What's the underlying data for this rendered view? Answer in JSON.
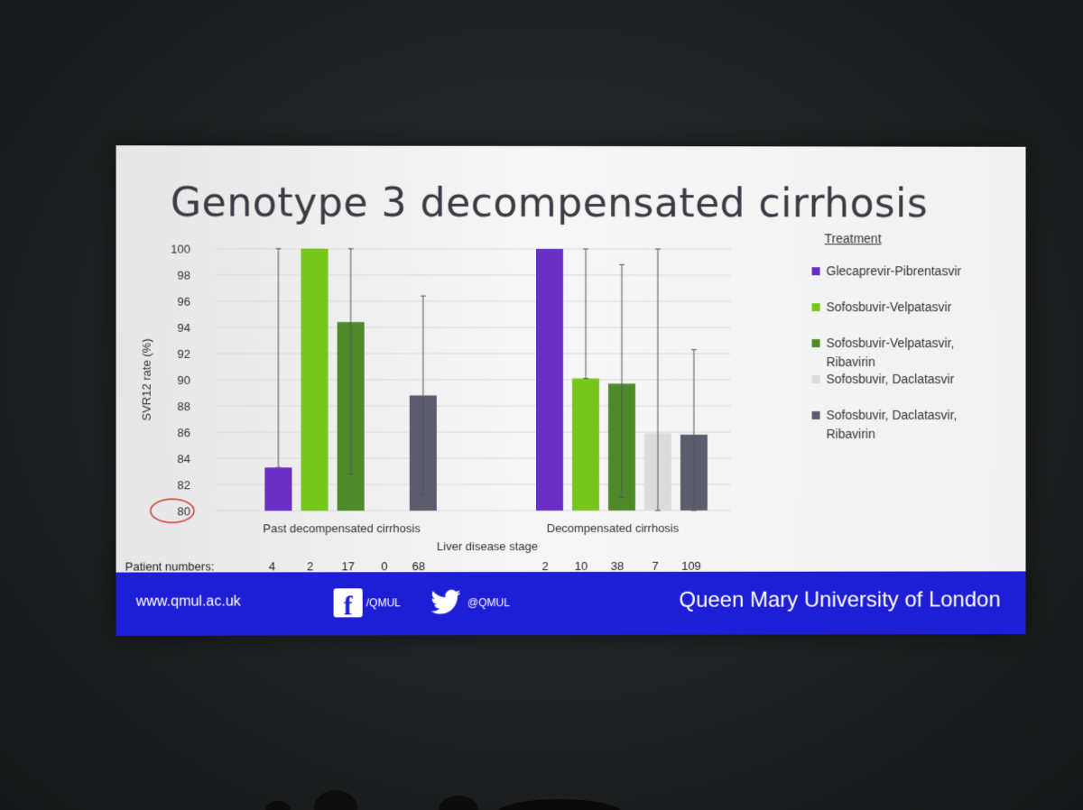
{
  "title": "Genotype 3 decompensated cirrhosis",
  "legend_title": "Treatment",
  "chart_data": {
    "type": "bar",
    "ylabel": "SVR12 rate (%)",
    "xlabel": "Liver disease stage",
    "ylim": [
      80,
      100
    ],
    "yticks": [
      80,
      82,
      84,
      86,
      88,
      90,
      92,
      94,
      96,
      98,
      100
    ],
    "highlighted_tick": 80,
    "categories": [
      "Past decompensated cirrhosis",
      "Decompensated cirrhosis"
    ],
    "series": [
      {
        "name": "Glecaprevir-Pibrentasvir",
        "color": "#6a2fc6",
        "values": [
          83.3,
          100
        ],
        "err_low": [
          83.3,
          100
        ],
        "err_high": [
          100,
          100
        ]
      },
      {
        "name": "Sofosbuvir-Velpatasvir",
        "color": "#78c51e",
        "values": [
          100,
          90.1
        ],
        "err_low": [
          100,
          90.1
        ],
        "err_high": [
          100,
          100
        ]
      },
      {
        "name": "Sofosbuvir-Velpatasvir, Ribavirin",
        "color": "#4e8a29",
        "values": [
          94.4,
          89.7
        ],
        "err_low": [
          82.8,
          81.0
        ],
        "err_high": [
          100,
          98.8
        ]
      },
      {
        "name": "Sofosbuvir, Daclatasvir",
        "color": "#dcdcdc",
        "values": [
          null,
          85.9
        ],
        "err_low": [
          null,
          80
        ],
        "err_high": [
          null,
          100
        ]
      },
      {
        "name": "Sofosbuvir, Daclatasvir, Ribavirin",
        "color": "#5b5d6e",
        "values": [
          88.8,
          85.8
        ],
        "err_low": [
          81.2,
          80
        ],
        "err_high": [
          96.4,
          92.3
        ]
      }
    ],
    "patient_numbers_label": "Patient numbers:",
    "patient_numbers": [
      [
        "4",
        "2",
        "17",
        "0",
        "68"
      ],
      [
        "2",
        "10",
        "38",
        "7",
        "109"
      ]
    ],
    "legend_position": "right",
    "grid": true
  },
  "footer": {
    "url": "www.qmul.ac.uk",
    "facebook": "/QMUL",
    "twitter": "@QMUL",
    "university": "Queen Mary University of London"
  }
}
